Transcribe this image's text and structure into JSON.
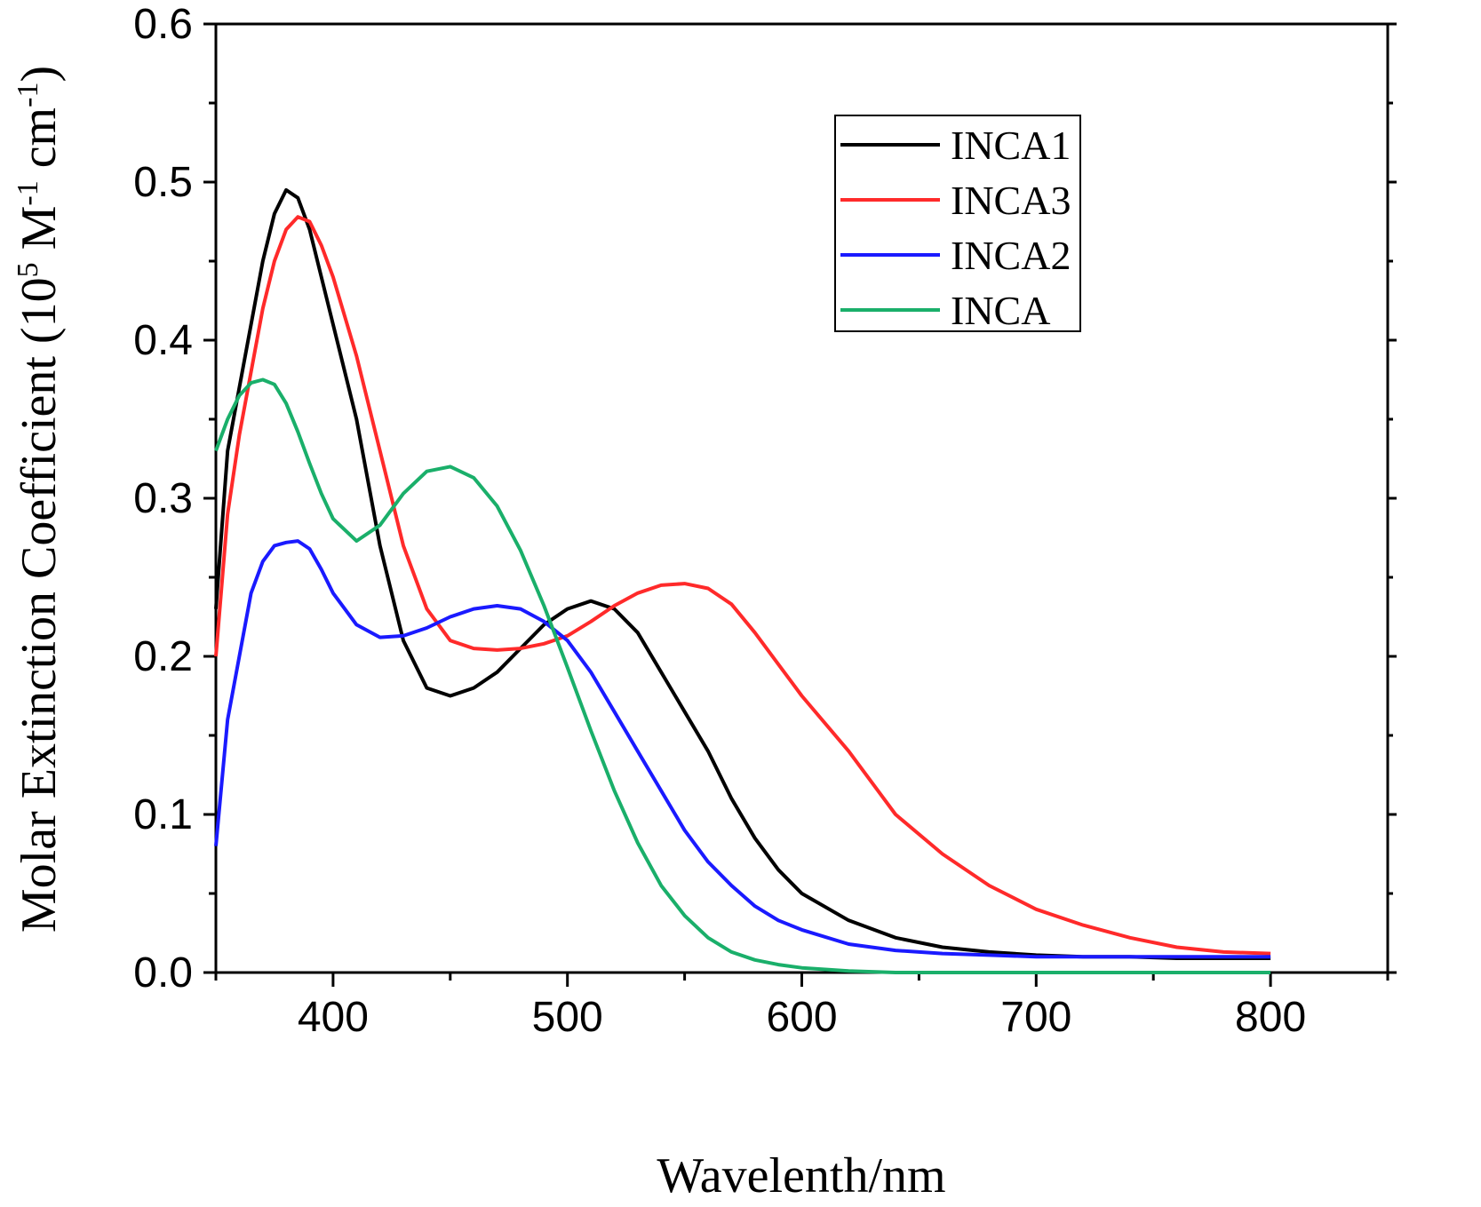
{
  "chart_data": {
    "type": "line",
    "title": "",
    "xlabel": "Wavelenth/nm",
    "ylabel": {
      "prefix": "Molar Extinction Coefficient (10",
      "exp1": "5",
      "mid": " M",
      "exp2": "-1",
      "mid2": " cm",
      "exp3": "-1",
      "suffix": ")"
    },
    "xlim": [
      350,
      850
    ],
    "ylim": [
      0.0,
      0.6
    ],
    "xticks": [
      400,
      500,
      600,
      700,
      800
    ],
    "xtick_labels": [
      "400",
      "500",
      "600",
      "700",
      "800"
    ],
    "yticks": [
      0.0,
      0.1,
      0.2,
      0.3,
      0.4,
      0.5,
      0.6
    ],
    "ytick_labels": [
      "0.0",
      "0.1",
      "0.2",
      "0.3",
      "0.4",
      "0.5",
      "0.6"
    ],
    "grid": false,
    "legend_position": "top-right",
    "series": [
      {
        "name": "INCA1",
        "color": "#000000",
        "x": [
          350,
          355,
          360,
          365,
          370,
          375,
          380,
          385,
          390,
          395,
          400,
          410,
          420,
          430,
          440,
          450,
          460,
          470,
          480,
          490,
          500,
          510,
          520,
          530,
          540,
          550,
          560,
          570,
          580,
          590,
          600,
          620,
          640,
          660,
          680,
          700,
          720,
          740,
          760,
          780,
          800
        ],
        "values": [
          0.23,
          0.33,
          0.37,
          0.41,
          0.45,
          0.48,
          0.495,
          0.49,
          0.47,
          0.44,
          0.41,
          0.35,
          0.27,
          0.21,
          0.18,
          0.175,
          0.18,
          0.19,
          0.205,
          0.22,
          0.23,
          0.235,
          0.23,
          0.215,
          0.19,
          0.165,
          0.14,
          0.11,
          0.085,
          0.065,
          0.05,
          0.033,
          0.022,
          0.016,
          0.013,
          0.011,
          0.01,
          0.01,
          0.009,
          0.009,
          0.009
        ]
      },
      {
        "name": "INCA3",
        "color": "#ff2a2a",
        "x": [
          350,
          355,
          360,
          365,
          370,
          375,
          380,
          385,
          390,
          395,
          400,
          410,
          420,
          430,
          440,
          450,
          460,
          470,
          480,
          490,
          500,
          510,
          520,
          530,
          540,
          550,
          560,
          570,
          580,
          590,
          600,
          620,
          640,
          660,
          680,
          700,
          720,
          740,
          760,
          780,
          800
        ],
        "values": [
          0.2,
          0.29,
          0.34,
          0.38,
          0.42,
          0.45,
          0.47,
          0.478,
          0.475,
          0.46,
          0.44,
          0.39,
          0.33,
          0.27,
          0.23,
          0.21,
          0.205,
          0.204,
          0.205,
          0.208,
          0.213,
          0.222,
          0.232,
          0.24,
          0.245,
          0.246,
          0.243,
          0.233,
          0.215,
          0.195,
          0.175,
          0.14,
          0.1,
          0.075,
          0.055,
          0.04,
          0.03,
          0.022,
          0.016,
          0.013,
          0.012
        ]
      },
      {
        "name": "INCA2",
        "color": "#1a1aff",
        "x": [
          350,
          355,
          360,
          365,
          370,
          375,
          380,
          385,
          390,
          395,
          400,
          410,
          420,
          430,
          440,
          450,
          460,
          470,
          480,
          490,
          500,
          510,
          520,
          530,
          540,
          550,
          560,
          570,
          580,
          590,
          600,
          620,
          640,
          660,
          680,
          700,
          720,
          740,
          760,
          780,
          800
        ],
        "values": [
          0.08,
          0.16,
          0.2,
          0.24,
          0.26,
          0.27,
          0.272,
          0.273,
          0.268,
          0.255,
          0.24,
          0.22,
          0.212,
          0.213,
          0.218,
          0.225,
          0.23,
          0.232,
          0.23,
          0.222,
          0.21,
          0.19,
          0.165,
          0.14,
          0.115,
          0.09,
          0.07,
          0.055,
          0.042,
          0.033,
          0.027,
          0.018,
          0.014,
          0.012,
          0.011,
          0.01,
          0.01,
          0.01,
          0.01,
          0.01,
          0.01
        ]
      },
      {
        "name": "INCA",
        "color": "#1aaf6a",
        "x": [
          350,
          355,
          360,
          365,
          370,
          375,
          380,
          385,
          390,
          395,
          400,
          410,
          420,
          430,
          440,
          450,
          460,
          470,
          480,
          490,
          500,
          510,
          520,
          530,
          540,
          550,
          560,
          570,
          580,
          590,
          600,
          620,
          640,
          660,
          680,
          700,
          720,
          740,
          760,
          780,
          800
        ],
        "values": [
          0.33,
          0.35,
          0.365,
          0.373,
          0.375,
          0.372,
          0.36,
          0.342,
          0.322,
          0.303,
          0.287,
          0.273,
          0.283,
          0.303,
          0.317,
          0.32,
          0.313,
          0.295,
          0.267,
          0.232,
          0.193,
          0.153,
          0.115,
          0.082,
          0.055,
          0.036,
          0.022,
          0.013,
          0.008,
          0.005,
          0.003,
          0.001,
          0.0,
          0.0,
          0.0,
          0.0,
          0.0,
          0.0,
          0.0,
          0.0,
          0.0
        ]
      }
    ]
  }
}
